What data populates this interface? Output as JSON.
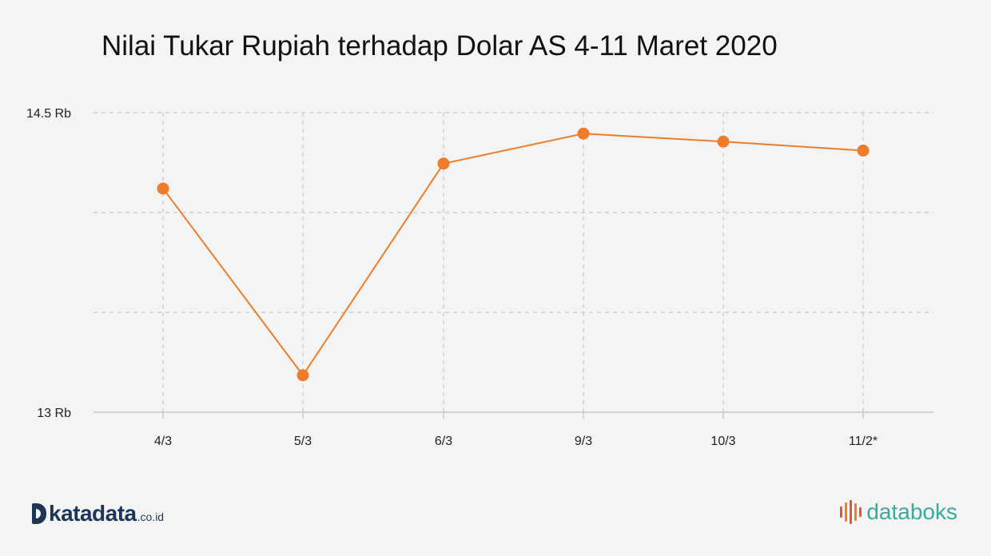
{
  "chart_data": {
    "type": "line",
    "title": "Nilai Tukar Rupiah terhadap Dolar AS 4-11 Maret 2020",
    "categories": [
      "4/3",
      "5/3",
      "6/3",
      "9/3",
      "10/3",
      "11/2*"
    ],
    "series": [
      {
        "values": [
          14120,
          13185,
          14245,
          14395,
          14355,
          14310
        ]
      }
    ],
    "ylim": [
      13000,
      14500
    ],
    "y_tick_labels": [
      "13 Rb",
      "14.5 Rb"
    ],
    "grid": true,
    "legend": "none",
    "line_color": "#ee7d2b",
    "marker_color": "#ee7d2b",
    "grid_color": "#c8c8c8"
  },
  "branding": {
    "left_name": "katadata",
    "left_suffix": ".co.id",
    "right_name": "databoks",
    "left_color": "#1d3557",
    "right_color": "#3aaa9b",
    "right_bar_colors": [
      "#e4572e",
      "#ee7d2b",
      "#e4572e",
      "#ee7d2b",
      "#e4572e"
    ]
  }
}
